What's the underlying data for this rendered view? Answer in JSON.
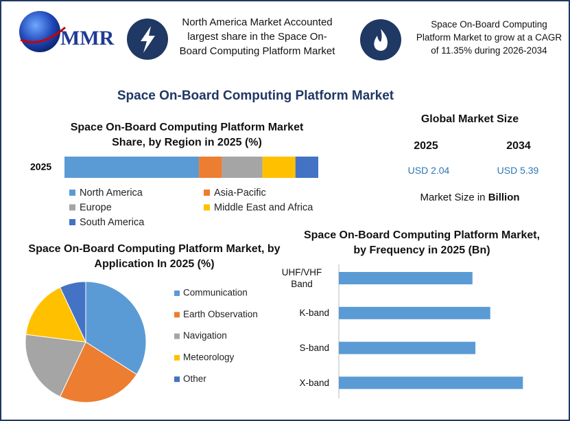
{
  "header": {
    "logo_text": "MMR",
    "highlight_1": "North America Market Accounted largest share in the Space On-Board Computing Platform Market",
    "highlight_2": "Space On-Board Computing Platform Market to grow at a CAGR of 11.35% during 2026-2034"
  },
  "title": "Space On-Board Computing Platform Market",
  "market_size": {
    "title": "Global Market Size",
    "years": [
      "2025",
      "2034"
    ],
    "values": [
      "USD 2.04",
      "USD 5.39"
    ],
    "note": "Market Size in",
    "note_unit": "Billion"
  },
  "chart_data": [
    {
      "type": "stacked_bar",
      "title": "Space On-Board Computing Platform Market Share, by Region in 2025 (%)",
      "categories": [
        "2025"
      ],
      "xlim": [
        0,
        100
      ],
      "series": [
        {
          "name": "North America",
          "color": "#5b9bd5",
          "values": [
            53
          ]
        },
        {
          "name": "Asia-Pacific",
          "color": "#ed7d31",
          "values": [
            9
          ]
        },
        {
          "name": "Europe",
          "color": "#a5a5a5",
          "values": [
            16
          ]
        },
        {
          "name": "Middle East and Africa",
          "color": "#ffc000",
          "values": [
            13
          ]
        },
        {
          "name": "South America",
          "color": "#4472c4",
          "values": [
            9
          ]
        }
      ]
    },
    {
      "type": "pie",
      "title": "Space On-Board Computing Platform Market, by Application In 2025 (%)",
      "categories": [
        "Communication",
        "Earth Observation",
        "Navigation",
        "Meteorology",
        "Other"
      ],
      "values": [
        34,
        23,
        20,
        16,
        7
      ],
      "colors": [
        "#5b9bd5",
        "#ed7d31",
        "#a5a5a5",
        "#ffc000",
        "#4472c4"
      ]
    },
    {
      "type": "bar",
      "title": "Space On-Board Computing Platform Market, by Frequency in 2025 (Bn)",
      "categories": [
        "UHF/VHF Band",
        "K-band",
        "S-band",
        "X-band"
      ],
      "values": [
        0.45,
        0.51,
        0.46,
        0.62
      ],
      "color": "#5b9bd5",
      "xlim": [
        0,
        0.7
      ]
    }
  ]
}
